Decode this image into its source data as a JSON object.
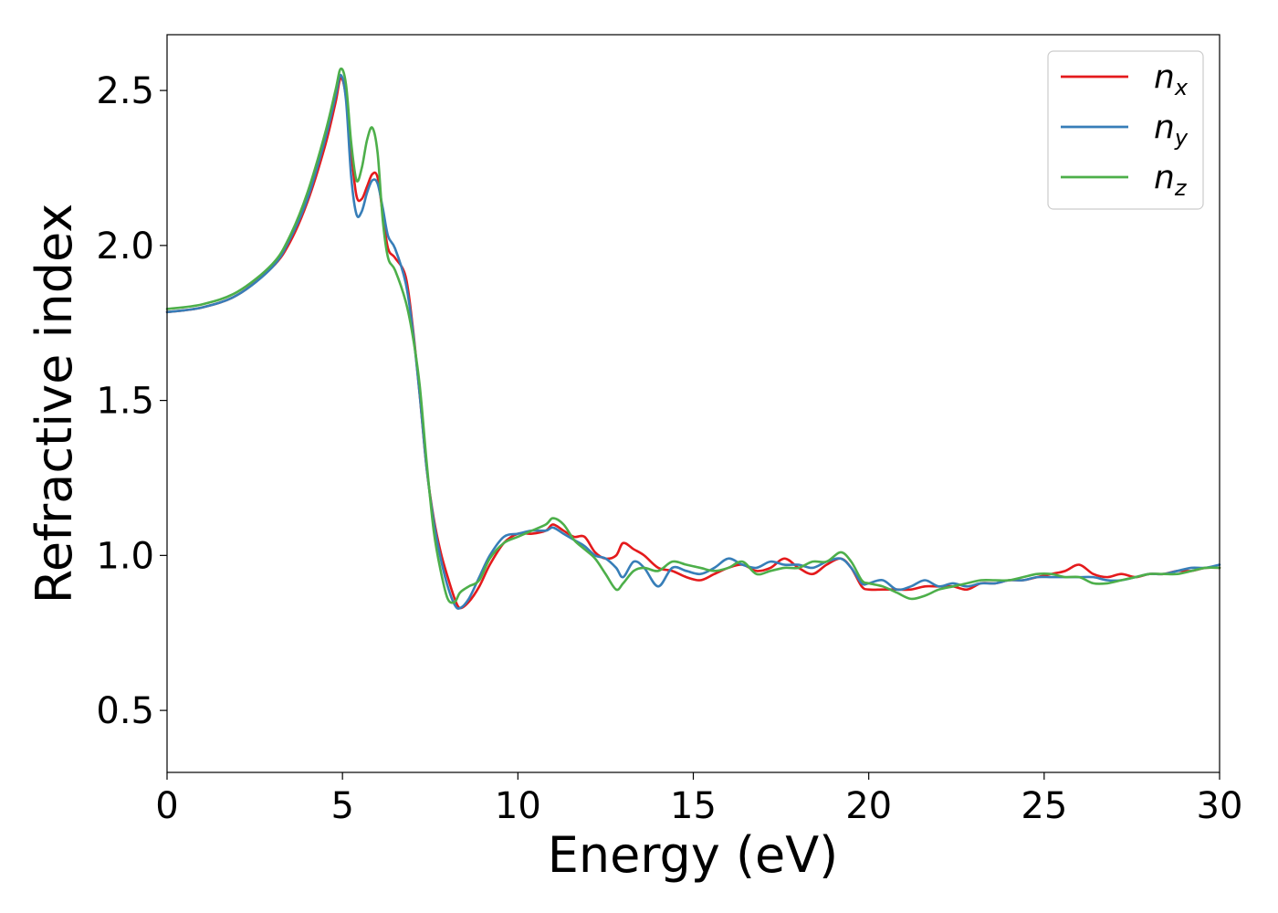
{
  "chart_data": {
    "type": "line",
    "title": "",
    "xlabel": "Energy (eV)",
    "ylabel": "Refractive index",
    "xlim": [
      0,
      30
    ],
    "ylim": [
      0.3,
      2.68
    ],
    "xticks": [
      0,
      5,
      10,
      15,
      20,
      25,
      30
    ],
    "xtick_labels": [
      "0",
      "5",
      "10",
      "15",
      "20",
      "25",
      "30"
    ],
    "yticks": [
      0.5,
      1.0,
      1.5,
      2.0,
      2.5
    ],
    "ytick_labels": [
      "0.5",
      "1.0",
      "1.5",
      "2.0",
      "2.5"
    ],
    "grid": false,
    "legend_position": "top-right",
    "series": [
      {
        "name": "n_x",
        "label_base": "n",
        "label_sub": "x",
        "color": "#e41a1c",
        "x": [
          0,
          1,
          2,
          3,
          3.5,
          4,
          4.5,
          4.8,
          4.95,
          5.1,
          5.25,
          5.4,
          5.55,
          5.7,
          5.85,
          6.0,
          6.15,
          6.3,
          6.5,
          6.8,
          7.0,
          7.2,
          7.4,
          7.6,
          7.8,
          8.0,
          8.2,
          8.35,
          8.6,
          8.9,
          9.2,
          9.6,
          10.0,
          10.4,
          10.8,
          11.0,
          11.3,
          11.6,
          11.9,
          12.2,
          12.5,
          12.8,
          13.0,
          13.3,
          13.6,
          14.0,
          14.4,
          14.8,
          15.2,
          15.6,
          16.0,
          16.4,
          16.8,
          17.2,
          17.6,
          18.0,
          18.4,
          18.8,
          19.2,
          19.5,
          19.8,
          20.0,
          20.4,
          20.8,
          21.2,
          21.6,
          22.0,
          22.4,
          22.8,
          23.2,
          23.6,
          24.0,
          24.4,
          24.8,
          25.2,
          25.6,
          26.0,
          26.4,
          26.8,
          27.2,
          27.6,
          28.0,
          28.4,
          28.8,
          29.2,
          29.6,
          30.0
        ],
        "y": [
          1.785,
          1.8,
          1.84,
          1.93,
          2.01,
          2.14,
          2.32,
          2.46,
          2.54,
          2.48,
          2.3,
          2.16,
          2.15,
          2.19,
          2.23,
          2.22,
          2.1,
          1.99,
          1.96,
          1.9,
          1.74,
          1.52,
          1.28,
          1.12,
          1.01,
          0.93,
          0.86,
          0.83,
          0.85,
          0.9,
          0.97,
          1.04,
          1.07,
          1.07,
          1.08,
          1.1,
          1.08,
          1.06,
          1.06,
          1.01,
          0.99,
          1.0,
          1.04,
          1.02,
          1.0,
          0.96,
          0.95,
          0.93,
          0.92,
          0.94,
          0.96,
          0.97,
          0.95,
          0.96,
          0.99,
          0.96,
          0.94,
          0.97,
          0.99,
          0.96,
          0.9,
          0.89,
          0.89,
          0.89,
          0.89,
          0.9,
          0.9,
          0.9,
          0.89,
          0.91,
          0.91,
          0.92,
          0.92,
          0.93,
          0.94,
          0.95,
          0.97,
          0.94,
          0.93,
          0.94,
          0.93,
          0.94,
          0.94,
          0.95,
          0.95,
          0.96,
          0.96
        ]
      },
      {
        "name": "n_y",
        "label_base": "n",
        "label_sub": "y",
        "color": "#377eb8",
        "x": [
          0,
          1,
          2,
          3,
          3.5,
          4,
          4.5,
          4.8,
          4.95,
          5.1,
          5.25,
          5.4,
          5.55,
          5.7,
          5.85,
          6.0,
          6.15,
          6.3,
          6.5,
          6.8,
          7.0,
          7.2,
          7.4,
          7.6,
          7.8,
          8.0,
          8.2,
          8.35,
          8.6,
          8.9,
          9.2,
          9.6,
          10.0,
          10.4,
          10.8,
          11.0,
          11.3,
          11.6,
          11.9,
          12.2,
          12.5,
          12.8,
          13.0,
          13.3,
          13.6,
          14.0,
          14.4,
          14.8,
          15.2,
          15.6,
          16.0,
          16.4,
          16.8,
          17.2,
          17.6,
          18.0,
          18.4,
          18.8,
          19.2,
          19.5,
          19.8,
          20.0,
          20.4,
          20.8,
          21.2,
          21.6,
          22.0,
          22.4,
          22.8,
          23.2,
          23.6,
          24.0,
          24.4,
          24.8,
          25.2,
          25.6,
          26.0,
          26.4,
          26.8,
          27.2,
          27.6,
          28.0,
          28.4,
          28.8,
          29.2,
          29.6,
          30.0
        ],
        "y": [
          1.785,
          1.8,
          1.84,
          1.93,
          2.02,
          2.15,
          2.34,
          2.48,
          2.55,
          2.47,
          2.22,
          2.1,
          2.11,
          2.17,
          2.21,
          2.2,
          2.12,
          2.03,
          1.99,
          1.88,
          1.73,
          1.52,
          1.28,
          1.11,
          0.99,
          0.9,
          0.84,
          0.83,
          0.86,
          0.93,
          1.0,
          1.06,
          1.07,
          1.08,
          1.08,
          1.09,
          1.07,
          1.05,
          1.03,
          1.0,
          0.99,
          0.96,
          0.93,
          0.98,
          0.96,
          0.9,
          0.96,
          0.95,
          0.94,
          0.96,
          0.99,
          0.97,
          0.96,
          0.98,
          0.97,
          0.97,
          0.96,
          0.98,
          0.99,
          0.96,
          0.91,
          0.91,
          0.92,
          0.89,
          0.9,
          0.92,
          0.9,
          0.91,
          0.9,
          0.91,
          0.91,
          0.92,
          0.92,
          0.93,
          0.93,
          0.93,
          0.93,
          0.93,
          0.92,
          0.92,
          0.93,
          0.94,
          0.94,
          0.95,
          0.96,
          0.96,
          0.97
        ]
      },
      {
        "name": "n_z",
        "label_base": "n",
        "label_sub": "z",
        "color": "#4daf4a",
        "x": [
          0,
          1,
          2,
          3,
          3.5,
          4,
          4.5,
          4.8,
          4.95,
          5.1,
          5.25,
          5.4,
          5.55,
          5.7,
          5.85,
          6.0,
          6.15,
          6.3,
          6.5,
          6.8,
          7.0,
          7.2,
          7.4,
          7.6,
          7.8,
          8.0,
          8.2,
          8.35,
          8.6,
          8.9,
          9.2,
          9.6,
          10.0,
          10.4,
          10.8,
          11.0,
          11.3,
          11.6,
          11.9,
          12.2,
          12.5,
          12.8,
          13.0,
          13.3,
          13.6,
          14.0,
          14.4,
          14.8,
          15.2,
          15.6,
          16.0,
          16.4,
          16.8,
          17.2,
          17.6,
          18.0,
          18.4,
          18.8,
          19.2,
          19.5,
          19.8,
          20.0,
          20.4,
          20.8,
          21.2,
          21.6,
          22.0,
          22.4,
          22.8,
          23.2,
          23.6,
          24.0,
          24.4,
          24.8,
          25.2,
          25.6,
          26.0,
          26.4,
          26.8,
          27.2,
          27.6,
          28.0,
          28.4,
          28.8,
          29.2,
          29.6,
          30.0
        ],
        "y": [
          1.795,
          1.81,
          1.85,
          1.94,
          2.03,
          2.17,
          2.36,
          2.5,
          2.57,
          2.52,
          2.33,
          2.21,
          2.25,
          2.34,
          2.38,
          2.3,
          2.08,
          1.96,
          1.92,
          1.82,
          1.71,
          1.55,
          1.3,
          1.08,
          0.95,
          0.86,
          0.85,
          0.88,
          0.9,
          0.92,
          0.99,
          1.04,
          1.06,
          1.08,
          1.1,
          1.12,
          1.1,
          1.05,
          1.02,
          0.99,
          0.94,
          0.89,
          0.91,
          0.95,
          0.96,
          0.95,
          0.98,
          0.97,
          0.96,
          0.95,
          0.96,
          0.98,
          0.94,
          0.95,
          0.96,
          0.96,
          0.98,
          0.98,
          1.01,
          0.98,
          0.92,
          0.91,
          0.9,
          0.88,
          0.86,
          0.87,
          0.89,
          0.9,
          0.91,
          0.92,
          0.92,
          0.92,
          0.93,
          0.94,
          0.94,
          0.93,
          0.93,
          0.91,
          0.91,
          0.92,
          0.93,
          0.94,
          0.94,
          0.94,
          0.95,
          0.96,
          0.96
        ]
      }
    ]
  }
}
